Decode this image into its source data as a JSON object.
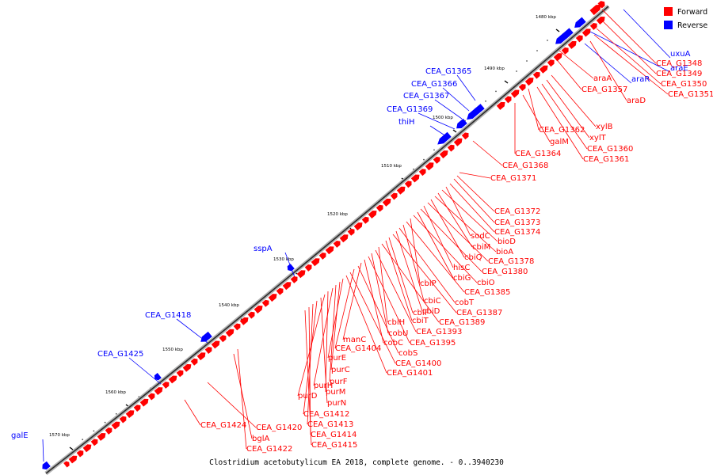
{
  "caption": "Clostridium acetobutylicum EA 2018, complete genome. - 0..3940230",
  "legend": [
    {
      "label": "Forward",
      "color": "#ff0000"
    },
    {
      "label": "Reverse",
      "color": "#0000ff"
    }
  ],
  "ticks": [
    {
      "label": "1480 kbp"
    },
    {
      "label": "1490 kbp"
    },
    {
      "label": "1500 kbp"
    },
    {
      "label": "1510 kbp"
    },
    {
      "label": "1520 kbp"
    },
    {
      "label": "1530 kbp"
    },
    {
      "label": "1540 kbp"
    },
    {
      "label": "1550 kbp"
    },
    {
      "label": "1560 kbp"
    },
    {
      "label": "1570 kbp"
    }
  ],
  "reverse_labels": [
    {
      "text": "uxuA"
    },
    {
      "text": "araE"
    },
    {
      "text": "araR"
    },
    {
      "text": "CEA_G1365"
    },
    {
      "text": "CEA_G1366"
    },
    {
      "text": "CEA_G1367"
    },
    {
      "text": "CEA_G1369"
    },
    {
      "text": "thiH"
    },
    {
      "text": "sspA"
    },
    {
      "text": "CEA_G1418"
    },
    {
      "text": "CEA_G1425"
    },
    {
      "text": "galE"
    }
  ],
  "forward_labels": [
    {
      "text": "CEA_G1348"
    },
    {
      "text": "CEA_G1349"
    },
    {
      "text": "CEA_G1350"
    },
    {
      "text": "CEA_G1351"
    },
    {
      "text": "araA"
    },
    {
      "text": "CEA_G1357"
    },
    {
      "text": "araD"
    },
    {
      "text": "xylB"
    },
    {
      "text": "xylT"
    },
    {
      "text": "CEA_G1362"
    },
    {
      "text": "galM"
    },
    {
      "text": "CEA_G1360"
    },
    {
      "text": "CEA_G1364"
    },
    {
      "text": "CEA_G1361"
    },
    {
      "text": "CEA_G1368"
    },
    {
      "text": "CEA_G1371"
    },
    {
      "text": "CEA_G1372"
    },
    {
      "text": "CEA_G1373"
    },
    {
      "text": "CEA_G1374"
    },
    {
      "text": "sodC"
    },
    {
      "text": "bioD"
    },
    {
      "text": "cbiM"
    },
    {
      "text": "bioA"
    },
    {
      "text": "cbiQ"
    },
    {
      "text": "CEA_G1378"
    },
    {
      "text": "hisC"
    },
    {
      "text": "CEA_G1380"
    },
    {
      "text": "cbiG"
    },
    {
      "text": "cbiO"
    },
    {
      "text": "cbiP"
    },
    {
      "text": "CEA_G1385"
    },
    {
      "text": "cbiC"
    },
    {
      "text": "cobT"
    },
    {
      "text": "cbiD"
    },
    {
      "text": "CEA_G1387"
    },
    {
      "text": "cbiF"
    },
    {
      "text": "cbiT"
    },
    {
      "text": "CEA_G1389"
    },
    {
      "text": "cbiH"
    },
    {
      "text": "CEA_G1393"
    },
    {
      "text": "cobU"
    },
    {
      "text": "CEA_G1395"
    },
    {
      "text": "cobC"
    },
    {
      "text": "manC"
    },
    {
      "text": "cobS"
    },
    {
      "text": "CEA_G1404"
    },
    {
      "text": "CEA_G1400"
    },
    {
      "text": "CEA_G1401"
    },
    {
      "text": "purE"
    },
    {
      "text": "purC"
    },
    {
      "text": "purF"
    },
    {
      "text": "purH"
    },
    {
      "text": "purM"
    },
    {
      "text": "purD"
    },
    {
      "text": "purN"
    },
    {
      "text": "CEA_G1412"
    },
    {
      "text": "CEA_G1413"
    },
    {
      "text": "CEA_G1414"
    },
    {
      "text": "CEA_G1415"
    },
    {
      "text": "CEA_G1424"
    },
    {
      "text": "CEA_G1420"
    },
    {
      "text": "bglA"
    },
    {
      "text": "CEA_G1422"
    }
  ]
}
